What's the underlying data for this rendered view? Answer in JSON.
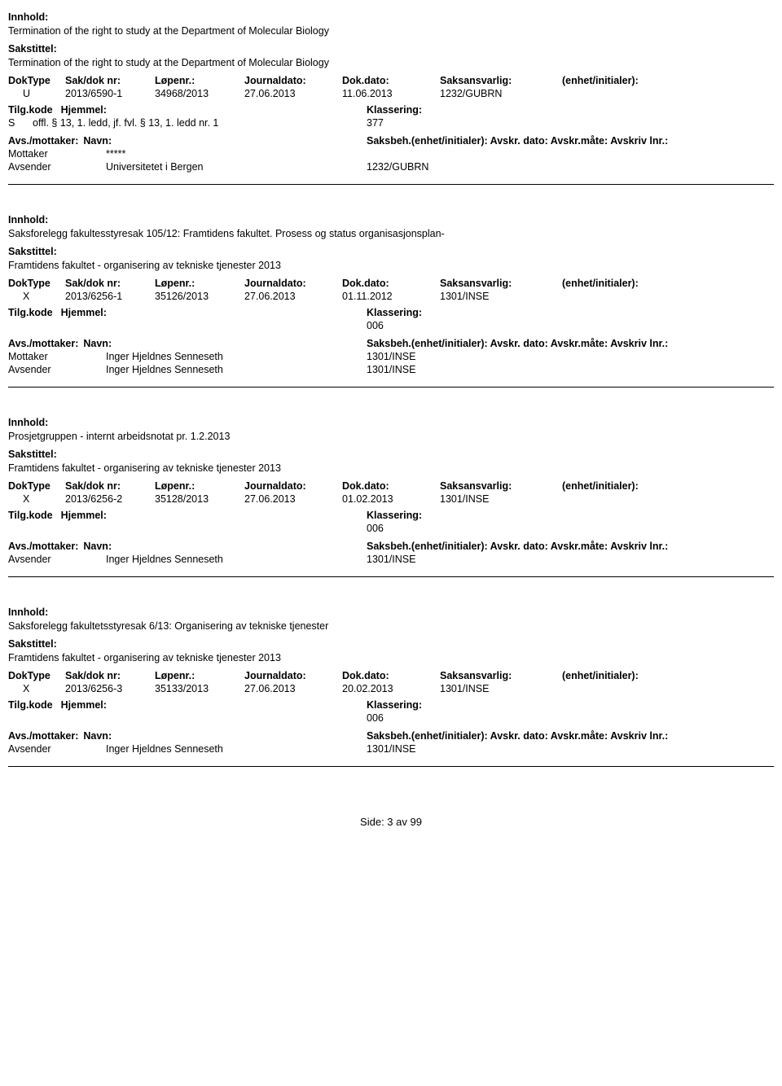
{
  "labels": {
    "innhold": "Innhold:",
    "sakstittel": "Sakstittel:",
    "doktype": "DokType",
    "saknr": "Sak/dok nr:",
    "lopenr": "Løpenr.:",
    "journaldato": "Journaldato:",
    "dokdato": "Dok.dato:",
    "saksansvarlig": "Saksansvarlig:",
    "enhet": "(enhet/initialer):",
    "tilgkode": "Tilg.kode",
    "hjemmel": "Hjemmel:",
    "klassering": "Klassering:",
    "avsmottaker": "Avs./mottaker:",
    "navn": "Navn:",
    "saksbeh": "Saksbeh.(enhet/initialer):",
    "avskrdato": "Avskr. dato:",
    "avskrmate": "Avskr.måte:",
    "avskriv": "Avskriv lnr.:"
  },
  "records": [
    {
      "innhold": "Termination of the right to study at the Department of Molecular Biology",
      "sakstittel": "Termination of the right to study at the Department of Molecular Biology",
      "doktype": "U",
      "saknr": "2013/6590-1",
      "lopenr": "34968/2013",
      "journaldato": "27.06.2013",
      "dokdato": "11.06.2013",
      "saksansvarlig": "1232/GUBRN",
      "tilgkode": "S",
      "hjemmel": "offl. § 13, 1. ledd, jf. fvl. § 13, 1. ledd nr. 1",
      "klassering": "377",
      "parties": [
        {
          "role": "Mottaker",
          "name": "*****",
          "code": ""
        },
        {
          "role": "Avsender",
          "name": "Universitetet i Bergen",
          "code": "1232/GUBRN"
        }
      ]
    },
    {
      "innhold": "Saksforelegg fakultesstyresak 105/12: Framtidens fakultet. Prosess og status organisasjonsplan-",
      "sakstittel": "Framtidens fakultet - organisering av tekniske tjenester 2013",
      "doktype": "X",
      "saknr": "2013/6256-1",
      "lopenr": "35126/2013",
      "journaldato": "27.06.2013",
      "dokdato": "01.11.2012",
      "saksansvarlig": "1301/INSE",
      "tilgkode": "",
      "hjemmel": "",
      "klassering": "006",
      "parties": [
        {
          "role": "Mottaker",
          "name": "Inger Hjeldnes Senneseth",
          "code": "1301/INSE"
        },
        {
          "role": "Avsender",
          "name": "Inger Hjeldnes Senneseth",
          "code": "1301/INSE"
        }
      ]
    },
    {
      "innhold": "Prosjetgruppen - internt arbeidsnotat pr. 1.2.2013",
      "sakstittel": "Framtidens fakultet - organisering av tekniske tjenester 2013",
      "doktype": "X",
      "saknr": "2013/6256-2",
      "lopenr": "35128/2013",
      "journaldato": "27.06.2013",
      "dokdato": "01.02.2013",
      "saksansvarlig": "1301/INSE",
      "tilgkode": "",
      "hjemmel": "",
      "klassering": "006",
      "parties": [
        {
          "role": "Avsender",
          "name": "Inger Hjeldnes Senneseth",
          "code": "1301/INSE"
        }
      ]
    },
    {
      "innhold": "Saksforelegg fakultetsstyresak 6/13: Organisering av tekniske tjenester",
      "sakstittel": "Framtidens fakultet - organisering av tekniske tjenester 2013",
      "doktype": "X",
      "saknr": "2013/6256-3",
      "lopenr": "35133/2013",
      "journaldato": "27.06.2013",
      "dokdato": "20.02.2013",
      "saksansvarlig": "1301/INSE",
      "tilgkode": "",
      "hjemmel": "",
      "klassering": "006",
      "parties": [
        {
          "role": "Avsender",
          "name": "Inger Hjeldnes Senneseth",
          "code": "1301/INSE"
        }
      ]
    }
  ],
  "footer": "Side: 3 av 99"
}
